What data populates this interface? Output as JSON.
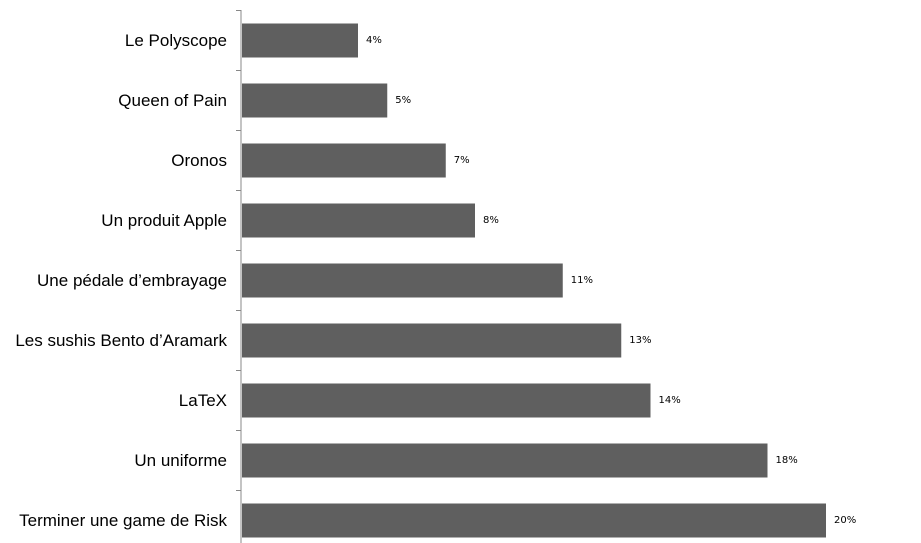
{
  "chart_data": {
    "type": "bar",
    "orientation": "horizontal",
    "categories": [
      "Le Polyscope",
      "Queen of Pain",
      "Oronos",
      "Un produit Apple",
      "Une pédale d’embrayage",
      "Les sushis Bento d’Aramark",
      "LaTeX",
      "Un uniforme",
      "Terminer une game de Risk"
    ],
    "values": [
      4,
      5,
      7,
      8,
      11,
      13,
      14,
      18,
      20
    ],
    "value_labels": [
      "4%",
      "5%",
      "7%",
      "8%",
      "11%",
      "13%",
      "14%",
      "18%",
      "20%"
    ],
    "unit": "%",
    "xlim": [
      0,
      20
    ],
    "grid": false,
    "bar_color": "#5f5f5f",
    "axis_color": "#888888"
  }
}
